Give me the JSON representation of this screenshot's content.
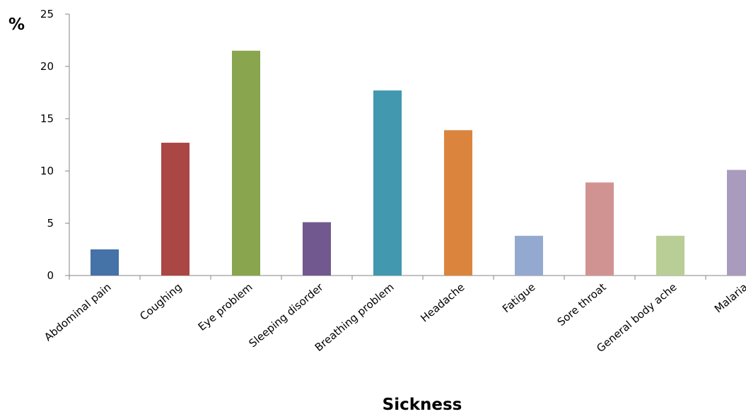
{
  "chart_data": {
    "type": "bar",
    "title": "",
    "xlabel": "Sickness",
    "ylabel": "%",
    "ylim": [
      0,
      25
    ],
    "yticks": [
      0,
      5,
      10,
      15,
      20,
      25
    ],
    "grid": false,
    "legend": "none",
    "categories": [
      "Abdominal pain",
      "Coughing",
      "Eye problem",
      "Sleeping disorder",
      "Breathing problem",
      "Headache",
      "Fatigue",
      "Sore throat",
      "General body ache",
      "Malaria"
    ],
    "values": [
      2.5,
      12.7,
      21.5,
      5.1,
      17.7,
      13.9,
      3.8,
      8.9,
      3.8,
      10.1
    ],
    "colors": [
      "#4572A7",
      "#AA4643",
      "#89A54E",
      "#71588F",
      "#4198AF",
      "#DB843D",
      "#93A9CF",
      "#D19392",
      "#B9CD96",
      "#A99BBD"
    ]
  }
}
